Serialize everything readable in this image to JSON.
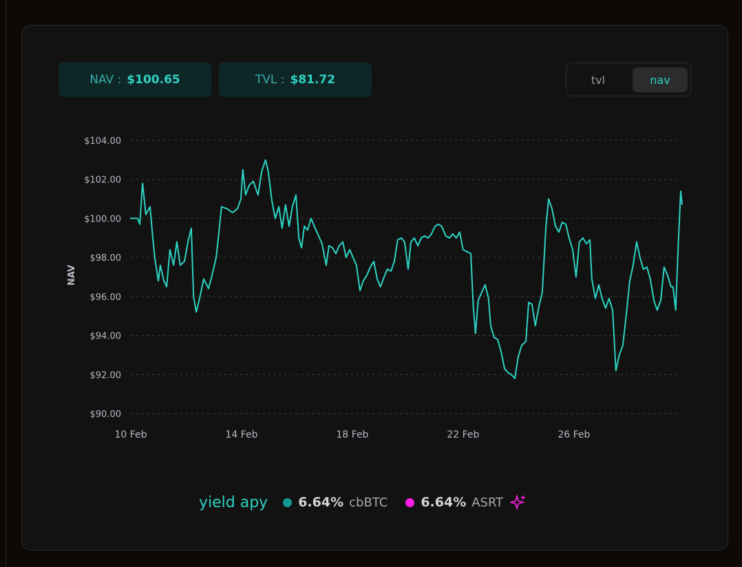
{
  "header": {
    "nav_label": "NAV :",
    "nav_value": "$100.65",
    "tvl_label": "TVL :",
    "tvl_value": "$81.72"
  },
  "toggle": {
    "options": [
      "tvl",
      "nav"
    ],
    "active": "nav"
  },
  "chart_data": {
    "type": "line",
    "ylabel": "NAV",
    "x": [
      10.0,
      10.27,
      10.35,
      10.45,
      10.57,
      10.72,
      10.82,
      10.89,
      11.02,
      11.09,
      11.22,
      11.32,
      11.44,
      11.57,
      11.69,
      11.81,
      11.96,
      12.09,
      12.21,
      12.29,
      12.39,
      12.51,
      12.66,
      12.83,
      12.96,
      13.11,
      13.2,
      13.3,
      13.5,
      13.7,
      13.88,
      14.0,
      14.07,
      14.17,
      14.3,
      14.45,
      14.62,
      14.75,
      14.89,
      14.99,
      15.12,
      15.24,
      15.37,
      15.49,
      15.61,
      15.74,
      15.86,
      15.99,
      16.09,
      16.19,
      16.29,
      16.41,
      16.53,
      16.68,
      16.81,
      16.93,
      17.08,
      17.18,
      17.3,
      17.43,
      17.55,
      17.68,
      17.8,
      17.93,
      18.05,
      18.17,
      18.3,
      18.42,
      18.55,
      18.67,
      18.8,
      18.92,
      19.04,
      19.17,
      19.29,
      19.42,
      19.54,
      19.66,
      19.79,
      19.91,
      20.04,
      20.14,
      20.26,
      20.39,
      20.51,
      20.63,
      20.76,
      20.88,
      21.01,
      21.13,
      21.25,
      21.4,
      21.53,
      21.65,
      21.78,
      21.9,
      22.02,
      22.15,
      22.3,
      22.39,
      22.47,
      22.57,
      22.69,
      22.82,
      22.94,
      23.02,
      23.14,
      23.27,
      23.39,
      23.52,
      23.64,
      23.76,
      23.89,
      24.01,
      24.14,
      24.29,
      24.39,
      24.51,
      24.63,
      24.76,
      24.88,
      25.01,
      25.11,
      25.23,
      25.36,
      25.48,
      25.6,
      25.73,
      25.85,
      25.98,
      26.1,
      26.22,
      26.35,
      26.47,
      26.6,
      26.67,
      26.8,
      26.92,
      27.04,
      27.17,
      27.29,
      27.42,
      27.54,
      27.66,
      27.79,
      27.91,
      28.04,
      28.16,
      28.29,
      28.41,
      28.53,
      28.66,
      28.78,
      28.91,
      29.03,
      29.16,
      29.28,
      29.4,
      29.53,
      29.6,
      29.7,
      29.8,
      29.88,
      29.93
    ],
    "series": [
      {
        "name": "NAV",
        "color": "#2dd4c4",
        "values": [
          100.0,
          100.0,
          99.7,
          101.8,
          100.2,
          100.6,
          99.0,
          98.0,
          96.8,
          97.6,
          96.8,
          96.5,
          98.4,
          97.6,
          98.8,
          97.6,
          97.8,
          98.8,
          99.5,
          96.0,
          95.2,
          95.9,
          96.9,
          96.4,
          97.1,
          98.0,
          99.2,
          100.6,
          100.5,
          100.3,
          100.5,
          101.0,
          102.5,
          101.2,
          101.7,
          101.9,
          101.2,
          102.4,
          103.0,
          102.4,
          100.9,
          100.0,
          100.6,
          99.5,
          100.7,
          99.6,
          100.6,
          101.2,
          99.0,
          98.5,
          99.6,
          99.4,
          100.0,
          99.5,
          99.1,
          98.7,
          97.6,
          98.6,
          98.5,
          98.2,
          98.6,
          98.8,
          98.0,
          98.4,
          98.0,
          97.6,
          96.3,
          96.8,
          97.1,
          97.5,
          97.8,
          96.9,
          96.5,
          97.0,
          97.4,
          97.3,
          97.8,
          98.9,
          99.0,
          98.8,
          97.4,
          98.8,
          99.0,
          98.6,
          99.0,
          99.1,
          99.0,
          99.2,
          99.6,
          99.7,
          99.6,
          99.1,
          99.0,
          99.2,
          99.0,
          99.3,
          98.4,
          98.3,
          98.2,
          95.5,
          94.1,
          95.8,
          96.2,
          96.6,
          95.9,
          94.5,
          93.9,
          93.8,
          93.2,
          92.3,
          92.1,
          92.0,
          91.8,
          92.9,
          93.5,
          93.7,
          95.7,
          95.6,
          94.5,
          95.5,
          96.2,
          99.5,
          101.0,
          100.5,
          99.6,
          99.3,
          99.8,
          99.7,
          99.0,
          98.4,
          97.0,
          98.8,
          99.0,
          98.7,
          98.9,
          96.9,
          95.9,
          96.6,
          95.9,
          95.4,
          95.9,
          95.3,
          92.2,
          93.0,
          93.5,
          95.0,
          96.8,
          97.6,
          98.8,
          98.0,
          97.4,
          97.5,
          96.9,
          95.8,
          95.3,
          95.8,
          97.5,
          97.1,
          96.5,
          96.5,
          95.3,
          99.0,
          101.4,
          100.7
        ]
      }
    ],
    "xlim": [
      10,
      29.93
    ],
    "xticks": [
      {
        "value": 10,
        "label": "10 Feb"
      },
      {
        "value": 14,
        "label": "14 Feb"
      },
      {
        "value": 18,
        "label": "18 Feb"
      },
      {
        "value": 22,
        "label": "22 Feb"
      },
      {
        "value": 26,
        "label": "26 Feb"
      }
    ],
    "ylim": [
      90,
      104
    ],
    "yticks": [
      {
        "value": 90,
        "label": "$90.00"
      },
      {
        "value": 92,
        "label": "$92.00"
      },
      {
        "value": 94,
        "label": "$94.00"
      },
      {
        "value": 96,
        "label": "$96.00"
      },
      {
        "value": 98,
        "label": "$98.00"
      },
      {
        "value": 100,
        "label": "$100.00"
      },
      {
        "value": 102,
        "label": "$102.00"
      },
      {
        "value": 104,
        "label": "$104.00"
      }
    ],
    "grid": true
  },
  "footer": {
    "title": "yield apy",
    "items": [
      {
        "value": "6.64%",
        "token": "cbBTC",
        "color": "#139a96"
      },
      {
        "value": "6.64%",
        "token": "ASRT",
        "color": "#ff1ee6"
      }
    ]
  }
}
